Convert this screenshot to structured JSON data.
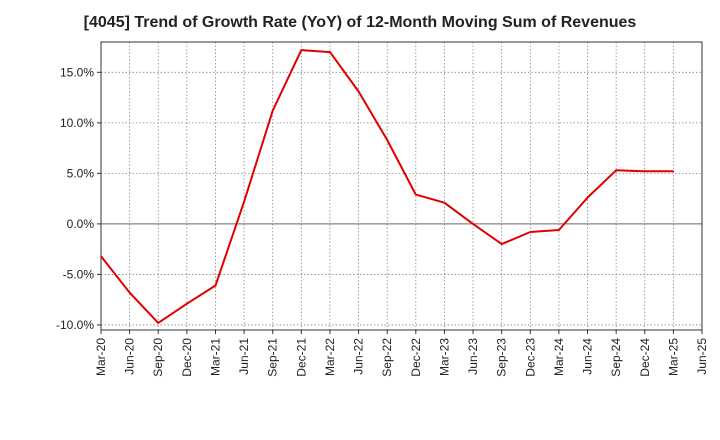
{
  "chart_data": {
    "type": "line",
    "title": "[4045]  Trend of Growth Rate (YoY) of 12-Month Moving Sum of Revenues",
    "xlabel": "",
    "ylabel": "",
    "x_ticks": [
      "Mar-20",
      "Jun-20",
      "Sep-20",
      "Dec-20",
      "Mar-21",
      "Jun-21",
      "Sep-21",
      "Dec-21",
      "Mar-22",
      "Jun-22",
      "Sep-22",
      "Dec-22",
      "Mar-23",
      "Jun-23",
      "Sep-23",
      "Dec-23",
      "Mar-24",
      "Jun-24",
      "Sep-24",
      "Dec-24",
      "Mar-25",
      "Jun-25"
    ],
    "y_ticks": [
      {
        "value": -10,
        "label": "-10.0%"
      },
      {
        "value": -5,
        "label": "-5.0%"
      },
      {
        "value": 0,
        "label": "0.0%"
      },
      {
        "value": 5,
        "label": "5.0%"
      },
      {
        "value": 10,
        "label": "10.0%"
      },
      {
        "value": 15,
        "label": "15.0%"
      }
    ],
    "ylim": [
      -10.5,
      18
    ],
    "grid": true,
    "zero_line": true,
    "series": [
      {
        "color": "#e00000",
        "x": [
          "Mar-20",
          "Jun-20",
          "Sep-20",
          "Dec-20",
          "Mar-21",
          "Jun-21",
          "Sep-21",
          "Dec-21",
          "Mar-22",
          "Jun-22",
          "Sep-22",
          "Dec-22",
          "Mar-23",
          "Jun-23",
          "Sep-23",
          "Dec-23",
          "Mar-24",
          "Jun-24",
          "Sep-24",
          "Dec-24",
          "Mar-25"
        ],
        "values": [
          -3.2,
          -6.8,
          -9.8,
          -7.9,
          -6.1,
          2.2,
          11.2,
          17.2,
          17.0,
          13.1,
          8.3,
          2.9,
          2.1,
          0.0,
          -2.0,
          -0.8,
          -0.6,
          2.6,
          5.3,
          5.2,
          5.2
        ]
      }
    ]
  }
}
